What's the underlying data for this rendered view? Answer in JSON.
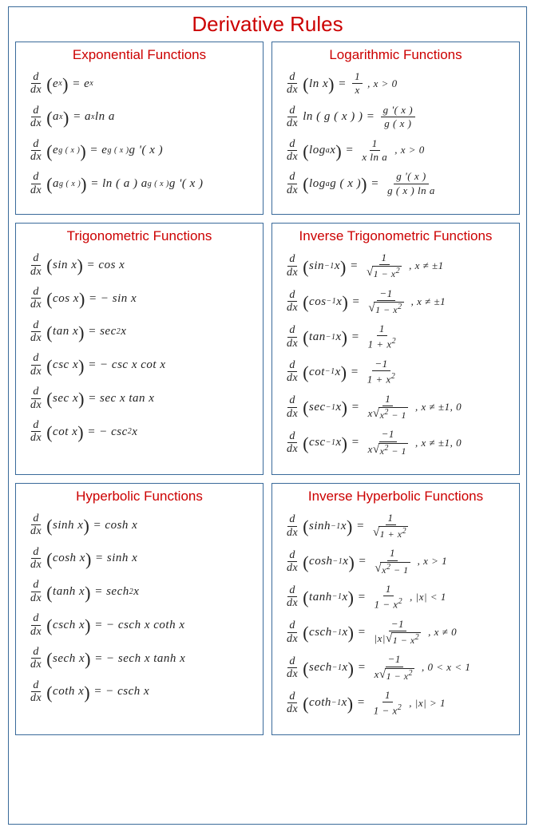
{
  "title": "Derivative Rules",
  "title_color": "#cc0000",
  "border_color": "#3a6a9a",
  "section_title_color": "#cc0000",
  "sections": [
    {
      "title": "Exponential Functions",
      "formulas": [
        {
          "lhs_inner": "e<sup> x</sup>",
          "rhs": "e<sup> x</sup>"
        },
        {
          "lhs_inner": "a<sup> x</sup>",
          "rhs": "a<sup> x</sup> ln a"
        },
        {
          "lhs_inner": "e<sup> g ( x )</sup>",
          "rhs": "e<sup> g ( x )</sup> g '( x )"
        },
        {
          "lhs_inner": "a<sup> g ( x )</sup>",
          "rhs": "ln ( a ) a<sup> g ( x )</sup> g '( x )"
        }
      ]
    },
    {
      "title": "Logarithmic Functions",
      "formulas": [
        {
          "lhs_inner": "ln x",
          "rhs_frac": {
            "num": "1",
            "den": "x"
          },
          "cond": ", x > 0"
        },
        {
          "lhs_plain": "ln ( g ( x ) )",
          "rhs_frac": {
            "num": "g '( x )",
            "den": "g ( x )"
          }
        },
        {
          "lhs_inner": "log<sub> a</sub> x",
          "rhs_frac": {
            "num": "1",
            "den": "x ln a"
          },
          "cond": ", x > 0"
        },
        {
          "lhs_inner": "log<sub> a</sub> g ( x )",
          "rhs_frac": {
            "num": "g '( x )",
            "den": "g ( x ) ln a"
          }
        }
      ]
    },
    {
      "title": "Trigonometric Functions",
      "formulas": [
        {
          "lhs_inner": "sin x",
          "rhs": "cos x"
        },
        {
          "lhs_inner": "cos x",
          "rhs": "− sin x"
        },
        {
          "lhs_inner": "tan x",
          "rhs": "sec<sup>2</sup> x"
        },
        {
          "lhs_inner": "csc x",
          "rhs": "− csc x cot x"
        },
        {
          "lhs_inner": "sec x",
          "rhs": "sec x tan x"
        },
        {
          "lhs_inner": "cot x",
          "rhs": "− csc<sup>2</sup> x"
        }
      ]
    },
    {
      "title": "Inverse Trigonometric Functions",
      "formulas": [
        {
          "lhs_inner": "sin<sup>−1</sup> x",
          "rhs_frac": {
            "num": "1",
            "den_sqrt": "1 − x<sup>2</sup>"
          },
          "cond": ", x ≠ ±1"
        },
        {
          "lhs_inner": "cos<sup>−1</sup> x",
          "rhs_frac": {
            "num": "−1",
            "den_sqrt": "1 − x<sup>2</sup>"
          },
          "cond": ", x ≠ ±1"
        },
        {
          "lhs_inner": "tan<sup>−1</sup> x",
          "rhs_frac": {
            "num": "1",
            "den": "1 + x<sup>2</sup>"
          }
        },
        {
          "lhs_inner": "cot<sup>−1</sup> x",
          "rhs_frac": {
            "num": "−1",
            "den": "1 + x<sup>2</sup>"
          }
        },
        {
          "lhs_inner": "sec<sup>−1</sup> x",
          "rhs_frac": {
            "num": "1",
            "den_pre": "x",
            "den_sqrt": "x<sup>2</sup> − 1"
          },
          "cond": ", x ≠ ±1, 0"
        },
        {
          "lhs_inner": "csc<sup>−1</sup> x",
          "rhs_frac": {
            "num": "−1",
            "den_pre": "x",
            "den_sqrt": "x<sup>2</sup> − 1"
          },
          "cond": ", x ≠ ±1, 0"
        }
      ]
    },
    {
      "title": "Hyperbolic Functions",
      "formulas": [
        {
          "lhs_inner": "sinh x",
          "rhs": "cosh x"
        },
        {
          "lhs_inner": "cosh x",
          "rhs": "sinh x"
        },
        {
          "lhs_inner": "tanh x",
          "rhs": "sech<sup>2</sup> x"
        },
        {
          "lhs_inner": "csch x",
          "rhs": "− csch x coth x"
        },
        {
          "lhs_inner": "sech x",
          "rhs": "− sech x tanh x"
        },
        {
          "lhs_inner": "coth x",
          "rhs": "− csch x"
        }
      ]
    },
    {
      "title": "Inverse Hyperbolic Functions",
      "formulas": [
        {
          "lhs_inner": "sinh<sup>−1</sup> x",
          "rhs_frac": {
            "num": "1",
            "den_sqrt": "1 + x<sup>2</sup>"
          }
        },
        {
          "lhs_inner": "cosh<sup>−1</sup> x",
          "rhs_frac": {
            "num": "1",
            "den_sqrt": "x<sup>2</sup> − 1"
          },
          "cond": ", x > 1"
        },
        {
          "lhs_inner": "tanh<sup>−1</sup> x",
          "rhs_frac": {
            "num": "1",
            "den": "1 − x<sup>2</sup>"
          },
          "cond": ", |x| < 1"
        },
        {
          "lhs_inner": "csch<sup>−1</sup> x",
          "rhs_frac": {
            "num": "−1",
            "den_pre": "|x|",
            "den_sqrt": "1 − x<sup>2</sup>"
          },
          "cond": ", x ≠ 0"
        },
        {
          "lhs_inner": "sech<sup>−1</sup> x",
          "rhs_frac": {
            "num": "−1",
            "den_pre": "x",
            "den_sqrt": "1 − x<sup>2</sup>"
          },
          "cond": ", 0 < x < 1"
        },
        {
          "lhs_inner": "coth<sup>−1</sup> x",
          "rhs_frac": {
            "num": "1",
            "den": "1 − x<sup>2</sup>"
          },
          "cond": ", |x| > 1"
        }
      ]
    }
  ]
}
